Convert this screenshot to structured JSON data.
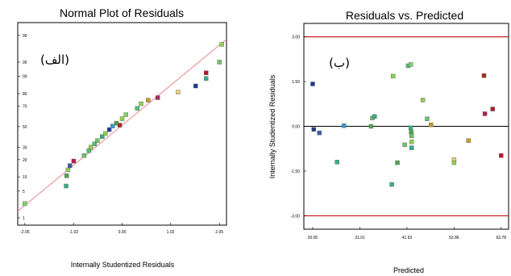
{
  "chart_data": [
    {
      "type": "scatter",
      "title": "Normal Plot of Residuals",
      "tag": "(الف)",
      "xlabel": "Internally Studentized Residuals",
      "ylabel": "",
      "xlim": [
        -2.2,
        2.2
      ],
      "x_ticks": [
        "-2.05",
        "-1.02",
        "0.00",
        "1.02",
        "2.05"
      ],
      "x_tick_values": [
        -2.05,
        -1.02,
        0.0,
        1.02,
        2.05
      ],
      "y_ticks": [
        "99",
        "95",
        "90",
        "80",
        "70",
        "50",
        "30",
        "20",
        "10",
        "5",
        "1"
      ],
      "y_tick_values": [
        99,
        95,
        90,
        80,
        70,
        50,
        30,
        20,
        10,
        5,
        1
      ],
      "ylim_percent": [
        0.6,
        99.6
      ],
      "fit_line": {
        "x": [
          -2.3,
          2.3
        ],
        "p": [
          1.2,
          99.0
        ],
        "color": "#e88a8a"
      },
      "points": [
        {
          "x": -2.05,
          "p": 2.5,
          "color": "#7fd36b"
        },
        {
          "x": -1.18,
          "p": 6.5,
          "color": "#35b08a"
        },
        {
          "x": -1.17,
          "p": 10.5,
          "color": "#4ca84a"
        },
        {
          "x": -1.14,
          "p": 13.5,
          "color": "#8fd34e"
        },
        {
          "x": -1.1,
          "p": 16.0,
          "color": "#2a5fb0"
        },
        {
          "x": -1.02,
          "p": 19.0,
          "color": "#b51a4a"
        },
        {
          "x": -0.8,
          "p": 23.0,
          "color": "#6fc36a"
        },
        {
          "x": -0.7,
          "p": 27.0,
          "color": "#4fc07a"
        },
        {
          "x": -0.66,
          "p": 30.0,
          "color": "#8fd34e"
        },
        {
          "x": -0.58,
          "p": 33.0,
          "color": "#4fc07a"
        },
        {
          "x": -0.52,
          "p": 36.0,
          "color": "#6fc36a"
        },
        {
          "x": -0.42,
          "p": 40.0,
          "color": "#35b08a"
        },
        {
          "x": -0.35,
          "p": 43.0,
          "color": "#8fd34e"
        },
        {
          "x": -0.27,
          "p": 47.0,
          "color": "#1a3c8f"
        },
        {
          "x": -0.2,
          "p": 50.5,
          "color": "#3a9bd0"
        },
        {
          "x": -0.12,
          "p": 53.5,
          "color": "#4ca84a"
        },
        {
          "x": -0.05,
          "p": 51.5,
          "color": "#a3301c"
        },
        {
          "x": 0.0,
          "p": 58.0,
          "color": "#8fd34e"
        },
        {
          "x": 0.08,
          "p": 62.0,
          "color": "#7fd36b"
        },
        {
          "x": 0.32,
          "p": 68.0,
          "color": "#4fc07a"
        },
        {
          "x": 0.4,
          "p": 72.0,
          "color": "#8fd34e"
        },
        {
          "x": 0.55,
          "p": 75.0,
          "color": "#c79b2d"
        },
        {
          "x": 0.75,
          "p": 77.0,
          "color": "#a82a5a"
        },
        {
          "x": 1.18,
          "p": 81.0,
          "color": "#e8d080"
        },
        {
          "x": 1.55,
          "p": 85.0,
          "color": "#1a3c8f"
        },
        {
          "x": 1.77,
          "p": 89.0,
          "color": "#35b08a"
        },
        {
          "x": 1.77,
          "p": 91.5,
          "color": "#c0142b"
        },
        {
          "x": 2.05,
          "p": 95.0,
          "color": "#6fc36a"
        },
        {
          "x": 2.1,
          "p": 98.2,
          "color": "#8fd34e"
        }
      ]
    },
    {
      "type": "scatter",
      "title": "Residuals vs. Predicted",
      "tag": "(ب)",
      "xlabel": "Predicted",
      "ylabel": "Internally Studentized Residuals",
      "xlim": [
        18.0,
        65.5
      ],
      "ylim": [
        -3.45,
        3.45
      ],
      "x_ticks": [
        "20.05",
        "31.01",
        "41.93",
        "52.86",
        "63.78"
      ],
      "x_tick_values": [
        20.05,
        31.01,
        41.93,
        52.86,
        63.78
      ],
      "y_ticks": [
        "3.00",
        "1.50",
        "0.00",
        "-1.50",
        "-3.00"
      ],
      "y_tick_values": [
        3.0,
        1.5,
        0.0,
        -1.5,
        -3.0
      ],
      "limit_lines": [
        3.0,
        -3.0
      ],
      "limit_color": "#cc2222",
      "points": [
        {
          "x": 20.05,
          "y": 1.42,
          "color": "#1a3c8f"
        },
        {
          "x": 20.3,
          "y": -0.1,
          "color": "#1a3c8f"
        },
        {
          "x": 21.6,
          "y": -0.22,
          "color": "#2a5fb0"
        },
        {
          "x": 25.7,
          "y": -1.2,
          "color": "#35b08a"
        },
        {
          "x": 27.3,
          "y": 0.02,
          "color": "#3a9bd0"
        },
        {
          "x": 33.6,
          "y": 0.0,
          "color": "#4ca84a"
        },
        {
          "x": 33.9,
          "y": 0.28,
          "color": "#6fc36a"
        },
        {
          "x": 34.4,
          "y": 0.33,
          "color": "#35b08a"
        },
        {
          "x": 38.4,
          "y": -1.95,
          "color": "#35b08a"
        },
        {
          "x": 38.7,
          "y": 1.68,
          "color": "#8fd34e"
        },
        {
          "x": 39.7,
          "y": -1.22,
          "color": "#4ca84a"
        },
        {
          "x": 41.4,
          "y": -0.62,
          "color": "#6fc36a"
        },
        {
          "x": 42.2,
          "y": 2.03,
          "color": "#4fc07a"
        },
        {
          "x": 42.8,
          "y": 2.07,
          "color": "#7fd36b"
        },
        {
          "x": 42.8,
          "y": -0.05,
          "color": "#35b08a"
        },
        {
          "x": 42.9,
          "y": -0.2,
          "color": "#4ca84a"
        },
        {
          "x": 43.0,
          "y": -0.32,
          "color": "#6fc36a"
        },
        {
          "x": 43.0,
          "y": -0.52,
          "color": "#8fd34e"
        },
        {
          "x": 43.0,
          "y": -0.72,
          "color": "#35b08a"
        },
        {
          "x": 45.6,
          "y": 0.88,
          "color": "#8fd34e"
        },
        {
          "x": 46.6,
          "y": 0.25,
          "color": "#6fc36a"
        },
        {
          "x": 47.5,
          "y": 0.05,
          "color": "#c79b2d"
        },
        {
          "x": 52.86,
          "y": -1.12,
          "color": "#e8d080"
        },
        {
          "x": 52.86,
          "y": -1.22,
          "color": "#8fd34e"
        },
        {
          "x": 56.2,
          "y": -0.48,
          "color": "#c79b2d"
        },
        {
          "x": 59.8,
          "y": 1.7,
          "color": "#a3301c"
        },
        {
          "x": 60.0,
          "y": 0.42,
          "color": "#b51a4a"
        },
        {
          "x": 61.8,
          "y": 0.58,
          "color": "#c0142b"
        },
        {
          "x": 63.78,
          "y": -0.98,
          "color": "#c0142b"
        }
      ]
    }
  ]
}
